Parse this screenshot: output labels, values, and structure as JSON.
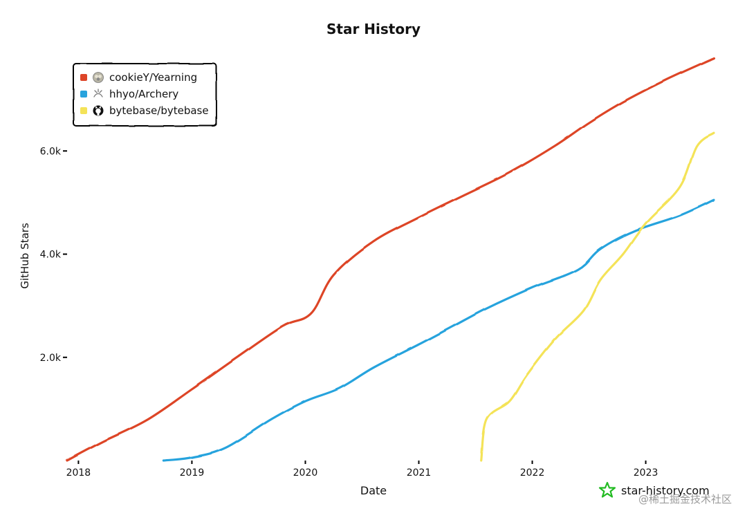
{
  "chart_data": {
    "type": "line",
    "title": "Star History",
    "xlabel": "Date",
    "ylabel": "GitHub Stars",
    "x_ticks": [
      "2018",
      "2019",
      "2020",
      "2021",
      "2022",
      "2023"
    ],
    "x_tick_values": [
      2018,
      2019,
      2020,
      2021,
      2022,
      2023
    ],
    "xlim": [
      2017.9,
      2023.6
    ],
    "y_ticks": [
      "2.0k",
      "4.0k",
      "6.0k"
    ],
    "y_tick_values": [
      2000,
      4000,
      6000
    ],
    "ylim": [
      0,
      7800
    ],
    "legend_position": "top-left",
    "series": [
      {
        "name": "cookieY/Yearning",
        "color": "#dd4528",
        "icon": "sheep-avatar-icon",
        "points": [
          [
            2017.9,
            0
          ],
          [
            2018.2,
            350
          ],
          [
            2018.6,
            780
          ],
          [
            2019.0,
            1380
          ],
          [
            2019.4,
            2000
          ],
          [
            2019.8,
            2600
          ],
          [
            2020.05,
            2850
          ],
          [
            2020.25,
            3600
          ],
          [
            2020.6,
            4250
          ],
          [
            2021.0,
            4720
          ],
          [
            2021.4,
            5150
          ],
          [
            2021.8,
            5580
          ],
          [
            2022.2,
            6100
          ],
          [
            2022.5,
            6550
          ],
          [
            2022.8,
            6950
          ],
          [
            2023.2,
            7400
          ],
          [
            2023.6,
            7800
          ]
        ]
      },
      {
        "name": "hhyo/Archery",
        "color": "#28a3dd",
        "icon": "archery-avatar-icon",
        "points": [
          [
            2018.75,
            0
          ],
          [
            2019.0,
            60
          ],
          [
            2019.3,
            250
          ],
          [
            2019.7,
            800
          ],
          [
            2020.0,
            1150
          ],
          [
            2020.3,
            1400
          ],
          [
            2020.6,
            1800
          ],
          [
            2021.0,
            2250
          ],
          [
            2021.3,
            2600
          ],
          [
            2021.6,
            2950
          ],
          [
            2022.0,
            3350
          ],
          [
            2022.4,
            3700
          ],
          [
            2022.6,
            4100
          ],
          [
            2022.9,
            4450
          ],
          [
            2023.3,
            4750
          ],
          [
            2023.6,
            5050
          ]
        ]
      },
      {
        "name": "bytebase/bytebase",
        "color": "#f4e358",
        "icon": "github-octocat-icon",
        "points": [
          [
            2021.55,
            0
          ],
          [
            2021.6,
            800
          ],
          [
            2021.8,
            1150
          ],
          [
            2021.95,
            1650
          ],
          [
            2022.2,
            2350
          ],
          [
            2022.45,
            2900
          ],
          [
            2022.6,
            3500
          ],
          [
            2022.8,
            4000
          ],
          [
            2023.0,
            4600
          ],
          [
            2023.3,
            5300
          ],
          [
            2023.45,
            6100
          ],
          [
            2023.6,
            6350
          ]
        ]
      }
    ]
  },
  "branding": {
    "logo_icon": "star-history-logo-icon",
    "logo_color": "#22bb22",
    "site": "star-history.com",
    "watermark": "@稀土掘金技术社区"
  }
}
